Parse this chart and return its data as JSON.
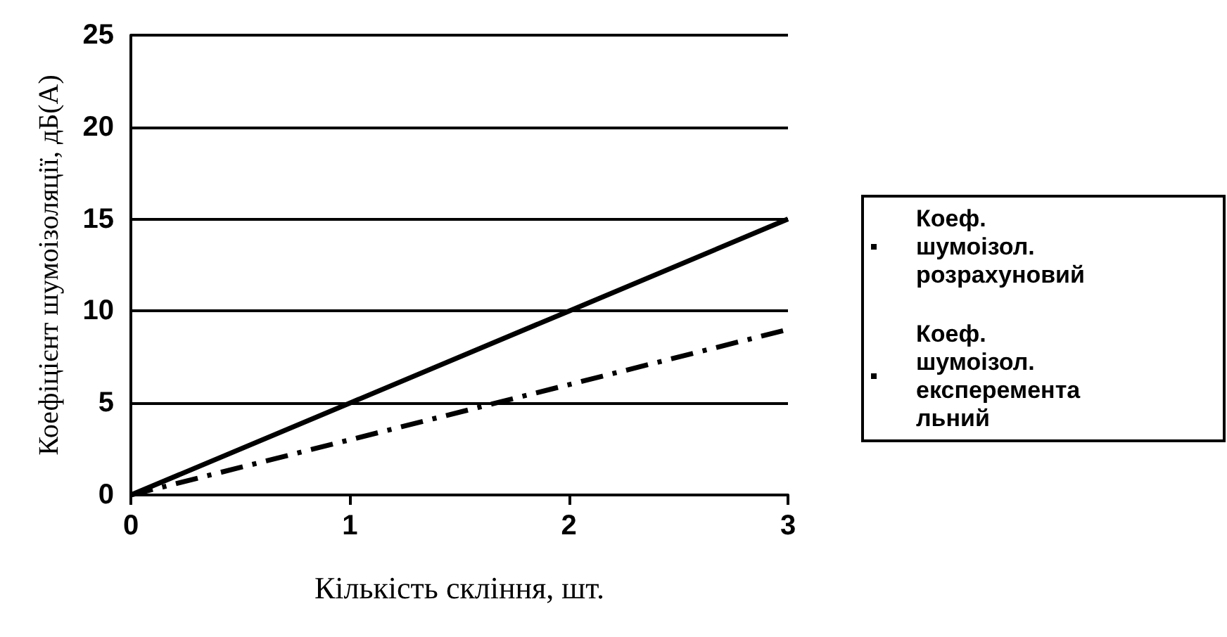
{
  "chart_data": {
    "type": "line",
    "xlabel": "Кількість скління, шт.",
    "ylabel": "Коефіцієнт шумоізоляції, дБ(А)",
    "x": [
      0,
      1,
      2,
      3
    ],
    "xlim": [
      0,
      3
    ],
    "xticks": [
      0,
      1,
      2,
      3
    ],
    "ylim": [
      0,
      25
    ],
    "yticks": [
      0,
      5,
      10,
      15,
      20,
      25
    ],
    "grid": "y",
    "legend": "right",
    "marker": "none",
    "series": [
      {
        "name": "Коеф. шумоізол. розрахуновий",
        "color": "#000000",
        "line_style": "solid",
        "values": [
          0,
          5,
          10,
          15
        ]
      },
      {
        "name": "Коеф. шумоізол. експерементальний",
        "color": "#000000",
        "line_style": "dashed",
        "values": [
          0,
          3,
          6,
          9
        ]
      }
    ]
  }
}
